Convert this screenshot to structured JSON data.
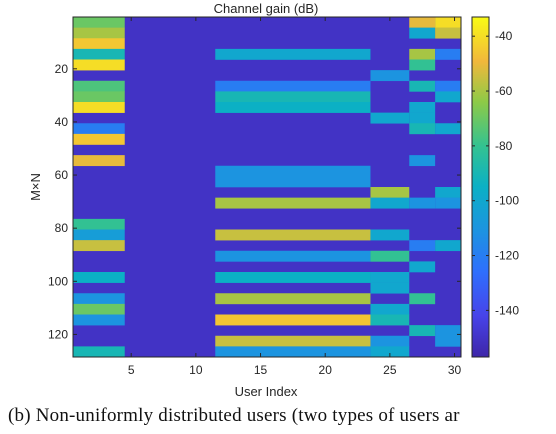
{
  "chart_data": {
    "type": "heatmap",
    "title": "Channel gain (dB)",
    "xlabel": "User Index",
    "ylabel": "M×N",
    "x_ticks": [
      5,
      10,
      15,
      20,
      25,
      30
    ],
    "y_ticks": [
      20,
      40,
      60,
      80,
      100,
      120
    ],
    "xlim": [
      0.5,
      30.5
    ],
    "ylim": [
      0.5,
      128.5
    ],
    "n_users": 30,
    "n_rows": 128,
    "colorbar": {
      "ticks": [
        -40,
        -60,
        -80,
        -100,
        -120,
        -140
      ],
      "range": [
        -157,
        -33
      ],
      "colormap": "parula"
    },
    "cell_values_note": "",
    "groups": [
      {
        "users": [
          1,
          4
        ],
        "band_rows": 4,
        "values_dB": [
          -70,
          -60,
          -45,
          -90,
          -40,
          -150,
          -75,
          -70,
          -40,
          -150,
          -120,
          -45,
          -150,
          -50,
          -150,
          -150,
          -150,
          -150,
          -150,
          -80,
          -105,
          -55,
          -150,
          -150,
          -95,
          -150,
          -110,
          -70,
          -110,
          -150,
          -150,
          -90
        ]
      },
      {
        "users": [
          5,
          11
        ],
        "band_rows": 4,
        "values_dB": [
          -150,
          -150,
          -150,
          -150,
          -150,
          -150,
          -150,
          -150,
          -150,
          -150,
          -150,
          -150,
          -150,
          -150,
          -150,
          -150,
          -150,
          -150,
          -150,
          -150,
          -150,
          -150,
          -150,
          -150,
          -150,
          -150,
          -150,
          -150,
          -150,
          -150,
          -150,
          -150
        ]
      },
      {
        "users": [
          12,
          23
        ],
        "band_rows": 4,
        "values_dB": [
          -150,
          -150,
          -150,
          -100,
          -150,
          -150,
          -120,
          -90,
          -95,
          -150,
          -150,
          -150,
          -150,
          -150,
          -110,
          -110,
          -150,
          -60,
          -150,
          -150,
          -55,
          -150,
          -110,
          -150,
          -95,
          -150,
          -60,
          -150,
          -45,
          -150,
          -55,
          -110
        ]
      },
      {
        "users": [
          24,
          26
        ],
        "band_rows": 4,
        "values_dB": [
          -150,
          -150,
          -150,
          -150,
          -150,
          -110,
          -150,
          -150,
          -150,
          -100,
          -150,
          -150,
          -150,
          -150,
          -150,
          -150,
          -60,
          -100,
          -150,
          -150,
          -100,
          -150,
          -80,
          -150,
          -100,
          -100,
          -150,
          -100,
          -90,
          -150,
          -110,
          -100
        ]
      },
      {
        "users": [
          27,
          28
        ],
        "band_rows": 4,
        "values_dB": [
          -50,
          -100,
          -150,
          -60,
          -80,
          -150,
          -90,
          -150,
          -100,
          -100,
          -90,
          -150,
          -150,
          -110,
          -150,
          -150,
          -150,
          -110,
          -150,
          -150,
          -150,
          -120,
          -150,
          -100,
          -150,
          -150,
          -80,
          -150,
          -150,
          -90,
          -150,
          -150
        ]
      },
      {
        "users": [
          29,
          30
        ],
        "band_rows": 4,
        "values_dB": [
          -40,
          -55,
          -150,
          -120,
          -150,
          -150,
          -120,
          -100,
          -150,
          -150,
          -100,
          -150,
          -150,
          -150,
          -150,
          -150,
          -100,
          -110,
          -150,
          -150,
          -150,
          -100,
          -150,
          -150,
          -150,
          -150,
          -150,
          -150,
          -150,
          -110,
          -110,
          -150
        ]
      }
    ]
  },
  "caption": {
    "line1": "(b)  Non-uniformly  distributed  users  (two  types  of  users  ar",
    "line2": ""
  }
}
